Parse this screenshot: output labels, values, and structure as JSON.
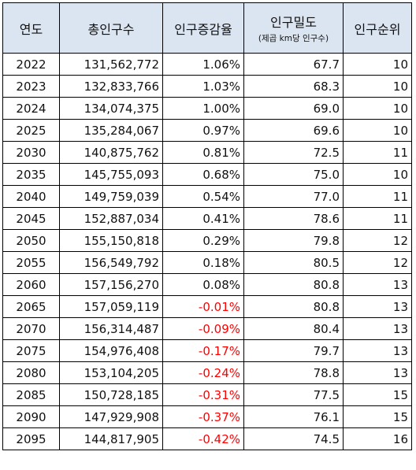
{
  "table": {
    "headers": {
      "year": "연도",
      "total": "총인구수",
      "growth": "인구증감율",
      "density": "인구밀도",
      "density_sub": "(제곱 km당 인구수)",
      "rank": "인구순위"
    },
    "rows": [
      {
        "year": "2022",
        "total": "131,562,772",
        "growth": "1.06%",
        "density": "67.7",
        "rank": "10"
      },
      {
        "year": "2023",
        "total": "132,833,766",
        "growth": "1.03%",
        "density": "68.3",
        "rank": "10"
      },
      {
        "year": "2024",
        "total": "134,074,375",
        "growth": "1.00%",
        "density": "69.0",
        "rank": "10"
      },
      {
        "year": "2025",
        "total": "135,284,067",
        "growth": "0.97%",
        "density": "69.6",
        "rank": "10"
      },
      {
        "year": "2030",
        "total": "140,875,762",
        "growth": "0.81%",
        "density": "72.5",
        "rank": "11"
      },
      {
        "year": "2035",
        "total": "145,755,093",
        "growth": "0.68%",
        "density": "75.0",
        "rank": "10"
      },
      {
        "year": "2040",
        "total": "149,759,039",
        "growth": "0.54%",
        "density": "77.0",
        "rank": "11"
      },
      {
        "year": "2045",
        "total": "152,887,034",
        "growth": "0.41%",
        "density": "78.6",
        "rank": "11"
      },
      {
        "year": "2050",
        "total": "155,150,818",
        "growth": "0.29%",
        "density": "79.8",
        "rank": "12"
      },
      {
        "year": "2055",
        "total": "156,549,792",
        "growth": "0.18%",
        "density": "80.5",
        "rank": "12"
      },
      {
        "year": "2060",
        "total": "157,156,270",
        "growth": "0.08%",
        "density": "80.8",
        "rank": "13"
      },
      {
        "year": "2065",
        "total": "157,059,119",
        "growth": "-0.01%",
        "density": "80.8",
        "rank": "13"
      },
      {
        "year": "2070",
        "total": "156,314,487",
        "growth": "-0.09%",
        "density": "80.4",
        "rank": "13"
      },
      {
        "year": "2075",
        "total": "154,976,408",
        "growth": "-0.17%",
        "density": "79.7",
        "rank": "13"
      },
      {
        "year": "2080",
        "total": "153,104,205",
        "growth": "-0.24%",
        "density": "78.8",
        "rank": "13"
      },
      {
        "year": "2085",
        "total": "150,728,185",
        "growth": "-0.31%",
        "density": "77.5",
        "rank": "15"
      },
      {
        "year": "2090",
        "total": "147,929,908",
        "growth": "-0.37%",
        "density": "76.1",
        "rank": "15"
      },
      {
        "year": "2095",
        "total": "144,817,905",
        "growth": "-0.42%",
        "density": "74.5",
        "rank": "16"
      }
    ],
    "colors": {
      "header_bg": "#dbe5f1",
      "negative_text": "#ff0000",
      "border": "#000000"
    }
  }
}
